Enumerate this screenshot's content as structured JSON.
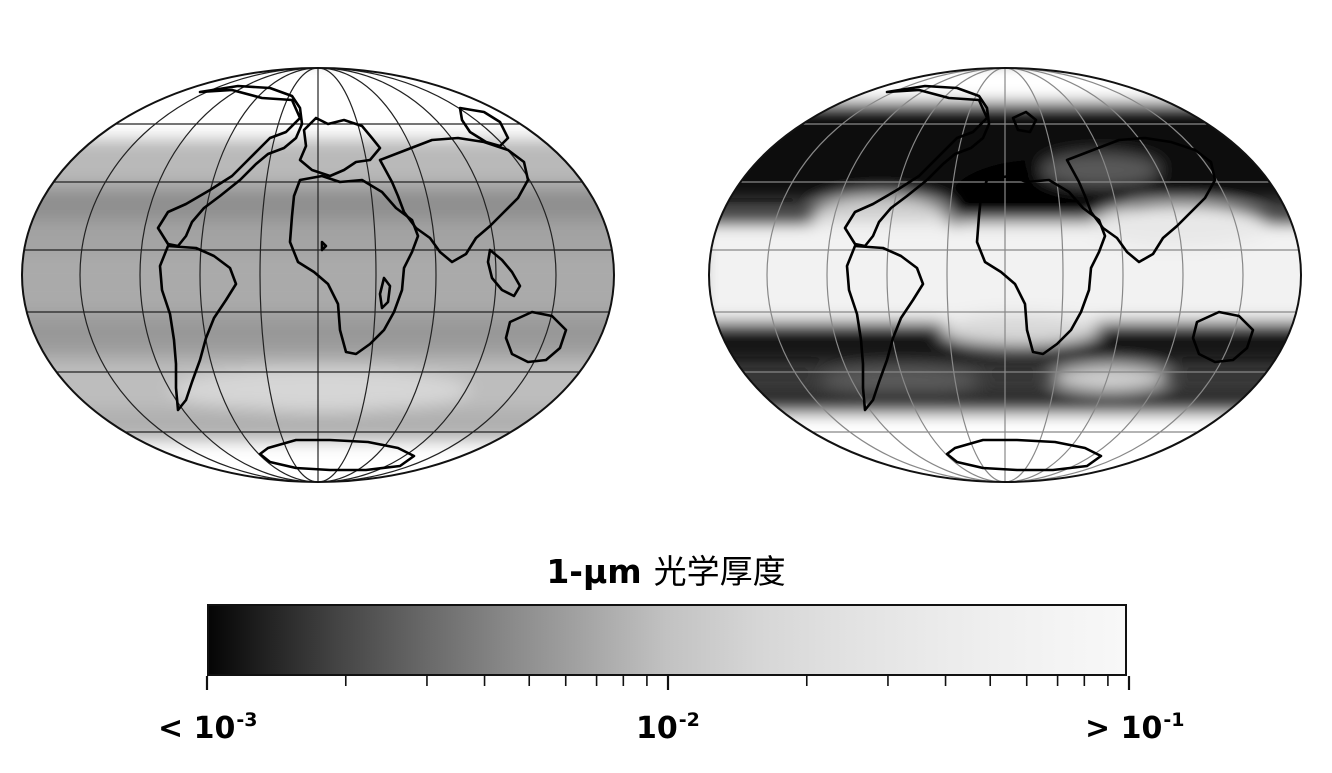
{
  "colorbar": {
    "title": "1-µm",
    "title_cjk": "光学厚度",
    "scale": "log",
    "range": [
      0.001,
      0.1
    ],
    "min_label": {
      "prefix": "< ",
      "base": "10",
      "exponent": "-3"
    },
    "mid_label": {
      "prefix": "",
      "base": "10",
      "exponent": "-2"
    },
    "max_label": {
      "prefix": "> ",
      "base": "10",
      "exponent": "-1"
    },
    "colors": {
      "low": "#050505",
      "high": "#f8f8f8"
    }
  },
  "maps": [
    {
      "name": "left-map",
      "projection": "hammer",
      "shading": "mostly-mid-gray"
    },
    {
      "name": "right-map",
      "projection": "hammer",
      "shading": "dark-midlatitudes-bright-tropics"
    }
  ]
}
